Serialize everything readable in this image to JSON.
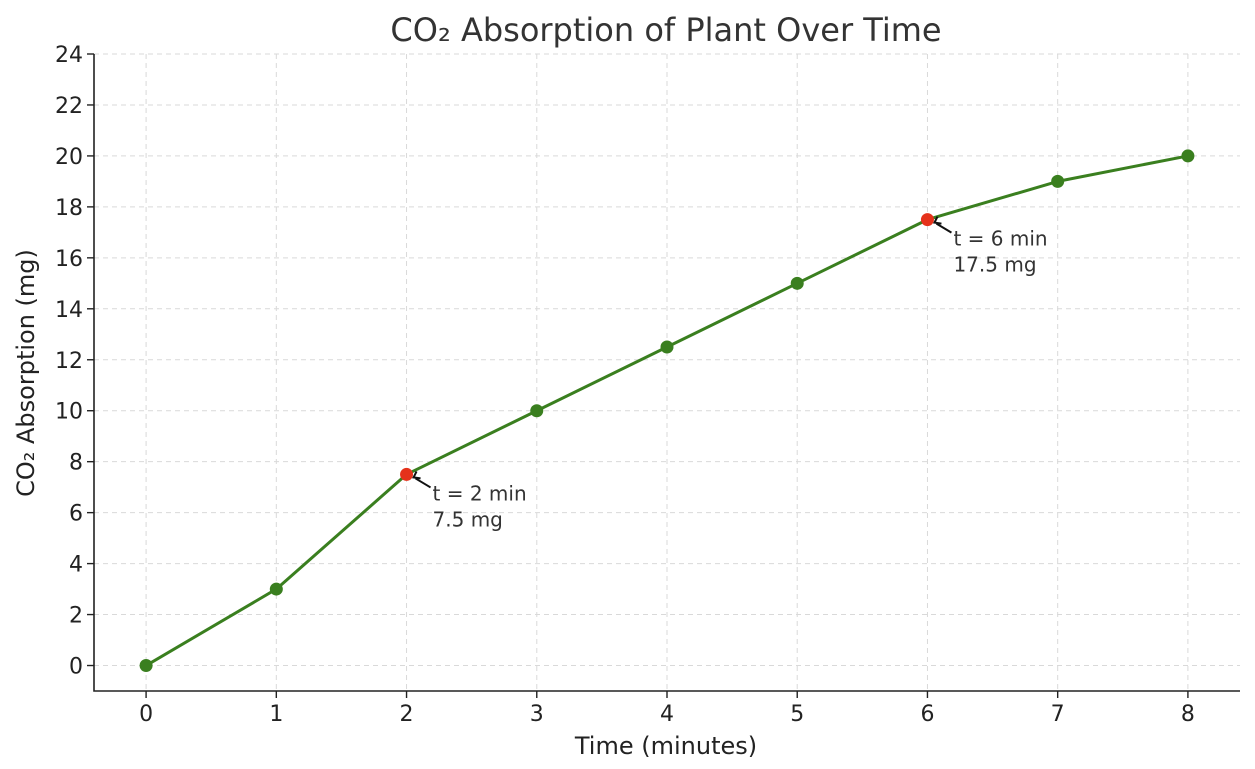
{
  "chart_data": {
    "type": "line",
    "title": "CO₂ Absorption of Plant Over Time",
    "xlabel": "Time (minutes)",
    "ylabel": "CO₂ Absorption (mg)",
    "xlim": [
      -0.4,
      8.4
    ],
    "ylim": [
      -1,
      24
    ],
    "x_ticks": [
      "0",
      "1",
      "2",
      "3",
      "4",
      "5",
      "6",
      "7",
      "8"
    ],
    "y_ticks": [
      "0",
      "2",
      "4",
      "6",
      "8",
      "10",
      "12",
      "14",
      "16",
      "18",
      "20",
      "22",
      "24"
    ],
    "grid": true,
    "series": [
      {
        "x": [
          0,
          1,
          2,
          3,
          4,
          5,
          6,
          7,
          8
        ],
        "values": [
          0,
          3,
          7.5,
          10,
          12.5,
          15,
          17.5,
          19,
          20
        ],
        "color": "#3a7f1f"
      }
    ],
    "highlight_color": "#e5321b",
    "annotations": [
      {
        "x": 2,
        "y": 7.5,
        "lines": [
          "t = 2 min",
          "7.5 mg"
        ]
      },
      {
        "x": 6,
        "y": 17.5,
        "lines": [
          "t = 6 min",
          "17.5 mg"
        ]
      }
    ]
  }
}
